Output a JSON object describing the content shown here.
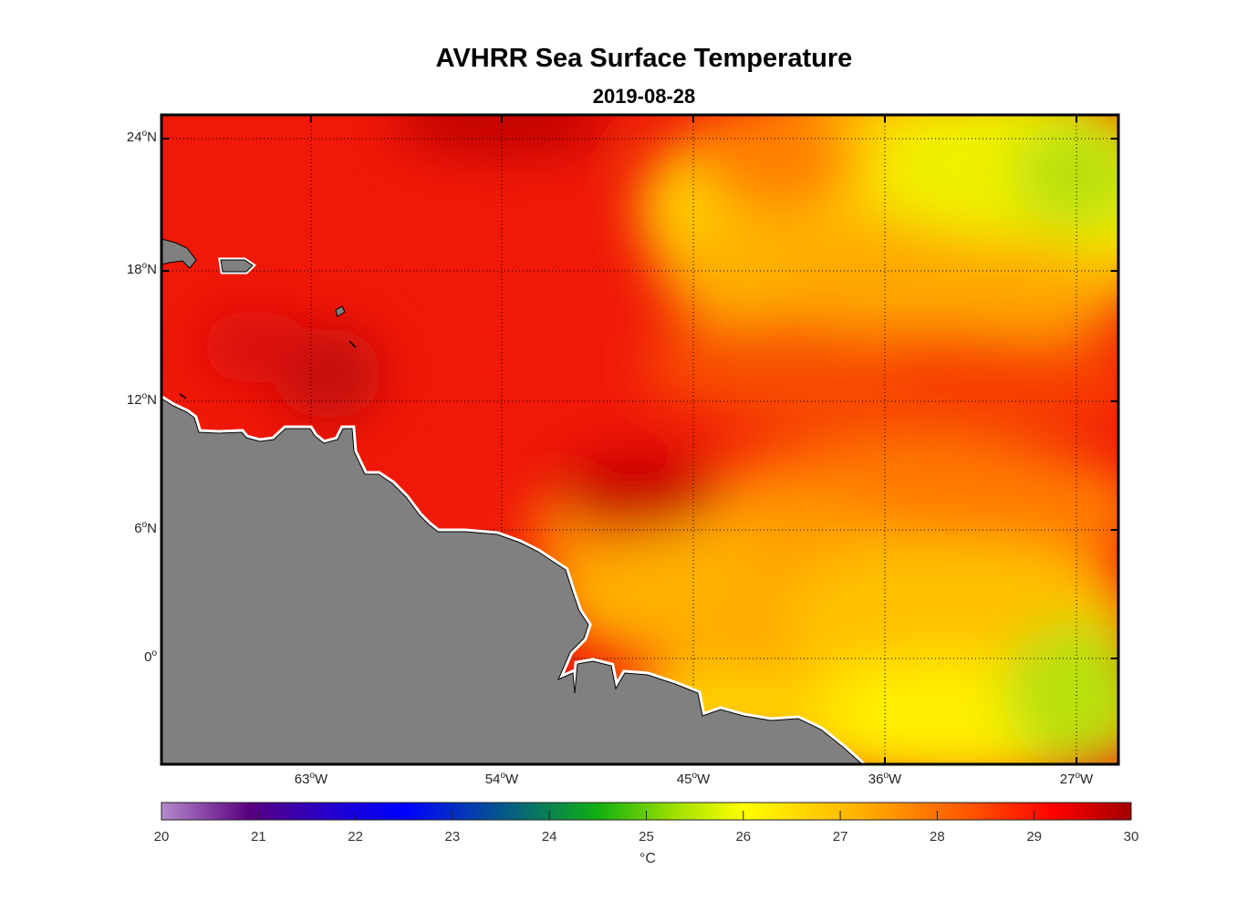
{
  "title": "AVHRR Sea Surface Temperature",
  "subtitle": "2019-08-28",
  "map": {
    "lat_ticks": [
      "24",
      "18",
      "12",
      "6",
      "0"
    ],
    "lat_suffix": [
      "N",
      "N",
      "N",
      "N",
      ""
    ],
    "lon_ticks": [
      "63",
      "54",
      "45",
      "36",
      "27"
    ],
    "lon_suffix": "W",
    "degree_symbol": "o",
    "land_color": "#808080",
    "extent": {
      "lon_min": -70,
      "lon_max": -25,
      "lat_min": -5,
      "lat_max": 25
    }
  },
  "colorbar": {
    "ticks": [
      "20",
      "21",
      "22",
      "23",
      "24",
      "25",
      "26",
      "27",
      "28",
      "29",
      "30"
    ],
    "unit": "°C",
    "range": [
      20,
      30
    ],
    "colors": [
      "#b48acb",
      "#5a0080",
      "#2000d0",
      "#0000ff",
      "#08706a",
      "#10b010",
      "#a0e000",
      "#ffff00",
      "#ffb000",
      "#ff5000",
      "#ff0000",
      "#a00000"
    ]
  }
}
